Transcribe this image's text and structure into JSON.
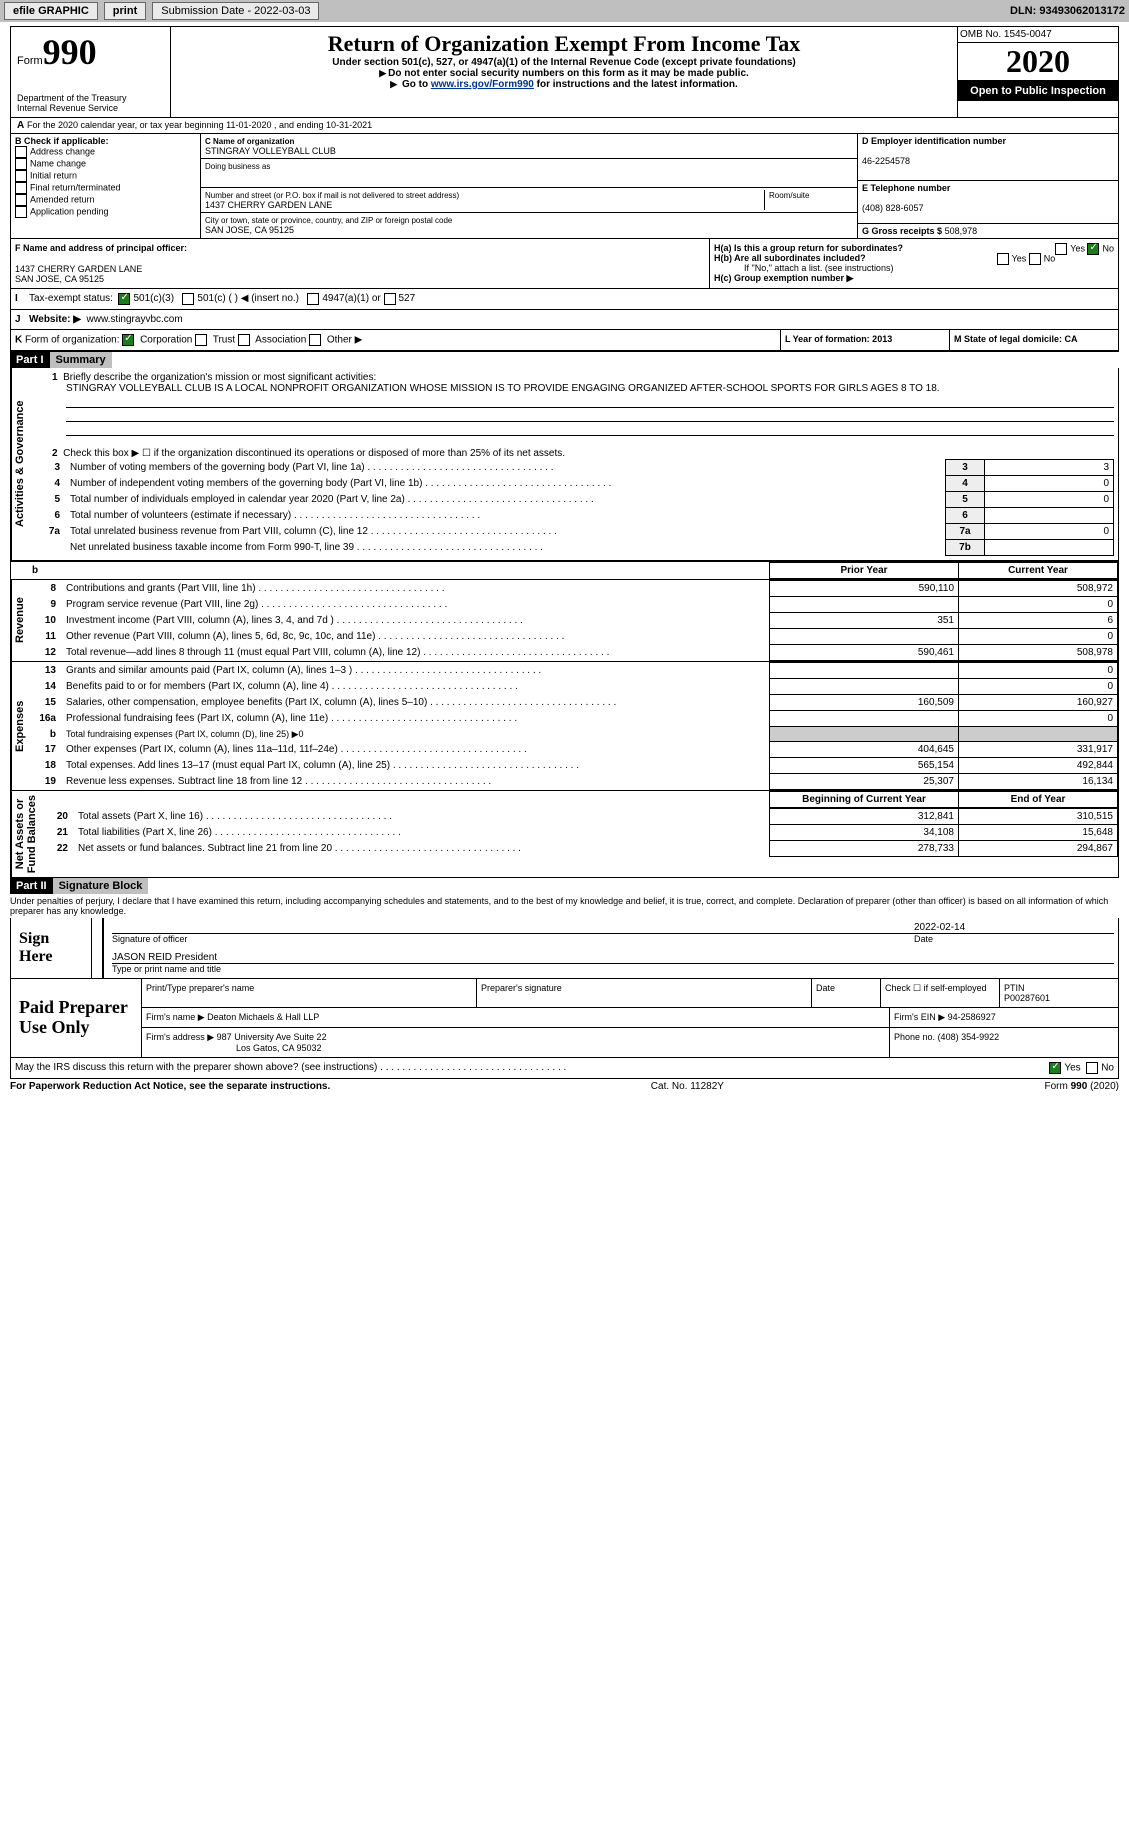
{
  "topbar": {
    "efile": "efile GRAPHIC",
    "print": "print",
    "submission": "Submission Date - 2022-03-03",
    "dln": "DLN: 93493062013172"
  },
  "header": {
    "form_label": "Form",
    "form_no": "990",
    "dept": "Department of the Treasury",
    "irs": "Internal Revenue Service",
    "title": "Return of Organization Exempt From Income Tax",
    "subtitle1": "Under section 501(c), 527, or 4947(a)(1) of the Internal Revenue Code (except private foundations)",
    "subtitle2": "Do not enter social security numbers on this form as it may be made public.",
    "subtitle3_pre": "Go to ",
    "subtitle3_link": "www.irs.gov/Form990",
    "subtitle3_post": " for instructions and the latest information.",
    "omb": "OMB No. 1545-0047",
    "year": "2020",
    "open": "Open to Public Inspection"
  },
  "rowA": {
    "pre": "A",
    "text": "For the 2020 calendar year, or tax year beginning 11-01-2020    , and ending 10-31-2021"
  },
  "boxB": {
    "title": "B Check if applicable:",
    "opts": [
      "Address change",
      "Name change",
      "Initial return",
      "Final return/terminated",
      "Amended return",
      "Application pending"
    ]
  },
  "boxC": {
    "label": "C Name of organization",
    "name": "STINGRAY VOLLEYBALL CLUB",
    "dba": "Doing business as",
    "addr_label": "Number and street (or P.O. box if mail is not delivered to street address)",
    "room": "Room/suite",
    "addr": "1437 CHERRY GARDEN LANE",
    "city_label": "City or town, state or province, country, and ZIP or foreign postal code",
    "city": "SAN JOSE, CA  95125"
  },
  "boxD": {
    "label": "D Employer identification number",
    "val": "46-2254578"
  },
  "boxE": {
    "label": "E Telephone number",
    "val": "(408) 828-6057"
  },
  "boxG": {
    "label": "G Gross receipts $",
    "val": "508,978"
  },
  "boxF": {
    "label": "F  Name and address of principal officer:",
    "addr1": "1437 CHERRY GARDEN LANE",
    "addr2": "SAN JOSE, CA  95125"
  },
  "boxH": {
    "ha": "H(a)  Is this a group return for subordinates?",
    "hb": "H(b)  Are all subordinates included?",
    "note": "If \"No,\" attach a list. (see instructions)",
    "hc": "H(c)  Group exemption number ▶",
    "yes": "Yes",
    "no": "No"
  },
  "rowI": {
    "label": "I",
    "text": "Tax-exempt status:",
    "o1": "501(c)(3)",
    "o2": "501(c) (  ) ◀ (insert no.)",
    "o3": "4947(a)(1) or",
    "o4": "527"
  },
  "rowJ": {
    "label": "J",
    "text": "Website: ▶",
    "val": "www.stingrayvbc.com"
  },
  "rowK": {
    "label": "K",
    "text": "Form of organization:",
    "o1": "Corporation",
    "o2": "Trust",
    "o3": "Association",
    "o4": "Other ▶"
  },
  "rowL": {
    "text": "L Year of formation: 2013"
  },
  "rowM": {
    "text": "M State of legal domicile: CA"
  },
  "part1": {
    "bar": "Part I",
    "title": "Summary"
  },
  "summary": {
    "l1": "Briefly describe the organization's mission or most significant activities:",
    "mission": "STINGRAY VOLLEYBALL CLUB IS A LOCAL NONPROFIT ORGANIZATION WHOSE MISSION IS TO PROVIDE ENGAGING ORGANIZED AFTER-SCHOOL SPORTS FOR GIRLS AGES 8 TO 18.",
    "l2": "Check this box ▶ ☐  if the organization discontinued its operations or disposed of more than 25% of its net assets.",
    "lines": [
      {
        "n": "3",
        "t": "Number of voting members of the governing body (Part VI, line 1a)",
        "lbl": "3",
        "v": "3"
      },
      {
        "n": "4",
        "t": "Number of independent voting members of the governing body (Part VI, line 1b)",
        "lbl": "4",
        "v": "0"
      },
      {
        "n": "5",
        "t": "Total number of individuals employed in calendar year 2020 (Part V, line 2a)",
        "lbl": "5",
        "v": "0"
      },
      {
        "n": "6",
        "t": "Total number of volunteers (estimate if necessary)",
        "lbl": "6",
        "v": ""
      },
      {
        "n": "7a",
        "t": "Total unrelated business revenue from Part VIII, column (C), line 12",
        "lbl": "7a",
        "v": "0"
      },
      {
        "n": "",
        "t": "Net unrelated business taxable income from Form 990-T, line 39",
        "lbl": "7b",
        "v": ""
      }
    ]
  },
  "twoCol": {
    "h_prior": "Prior Year",
    "h_curr": "Current Year",
    "h_beg": "Beginning of Current Year",
    "h_end": "End of Year",
    "revenue": [
      {
        "n": "8",
        "t": "Contributions and grants (Part VIII, line 1h)",
        "p": "590,110",
        "c": "508,972"
      },
      {
        "n": "9",
        "t": "Program service revenue (Part VIII, line 2g)",
        "p": "",
        "c": "0"
      },
      {
        "n": "10",
        "t": "Investment income (Part VIII, column (A), lines 3, 4, and 7d )",
        "p": "351",
        "c": "6"
      },
      {
        "n": "11",
        "t": "Other revenue (Part VIII, column (A), lines 5, 6d, 8c, 9c, 10c, and 11e)",
        "p": "",
        "c": "0"
      },
      {
        "n": "12",
        "t": "Total revenue—add lines 8 through 11 (must equal Part VIII, column (A), line 12)",
        "p": "590,461",
        "c": "508,978"
      }
    ],
    "expenses": [
      {
        "n": "13",
        "t": "Grants and similar amounts paid (Part IX, column (A), lines 1–3 )",
        "p": "",
        "c": "0"
      },
      {
        "n": "14",
        "t": "Benefits paid to or for members (Part IX, column (A), line 4)",
        "p": "",
        "c": "0"
      },
      {
        "n": "15",
        "t": "Salaries, other compensation, employee benefits (Part IX, column (A), lines 5–10)",
        "p": "160,509",
        "c": "160,927"
      },
      {
        "n": "16a",
        "t": "Professional fundraising fees (Part IX, column (A), line 11e)",
        "p": "",
        "c": "0"
      },
      {
        "n": "b",
        "t": "Total fundraising expenses (Part IX, column (D), line 25) ▶0",
        "p": "GREY",
        "c": "GREY",
        "sm": true
      },
      {
        "n": "17",
        "t": "Other expenses (Part IX, column (A), lines 11a–11d, 11f–24e)",
        "p": "404,645",
        "c": "331,917"
      },
      {
        "n": "18",
        "t": "Total expenses. Add lines 13–17 (must equal Part IX, column (A), line 25)",
        "p": "565,154",
        "c": "492,844"
      },
      {
        "n": "19",
        "t": "Revenue less expenses. Subtract line 18 from line 12",
        "p": "25,307",
        "c": "16,134"
      }
    ],
    "netassets": [
      {
        "n": "20",
        "t": "Total assets (Part X, line 16)",
        "p": "312,841",
        "c": "310,515"
      },
      {
        "n": "21",
        "t": "Total liabilities (Part X, line 26)",
        "p": "34,108",
        "c": "15,648"
      },
      {
        "n": "22",
        "t": "Net assets or fund balances. Subtract line 21 from line 20",
        "p": "278,733",
        "c": "294,867"
      }
    ]
  },
  "vertlabels": {
    "ag": "Activities & Governance",
    "rev": "Revenue",
    "exp": "Expenses",
    "na": "Net Assets or\nFund Balances"
  },
  "part2": {
    "bar": "Part II",
    "title": "Signature Block"
  },
  "declare": "Under penalties of perjury, I declare that I have examined this return, including accompanying schedules and statements, and to the best of my knowledge and belief, it is true, correct, and complete. Declaration of preparer (other than officer) is based on all information of which preparer has any knowledge.",
  "sign": {
    "here": "Sign Here",
    "sigline": "Signature of officer",
    "date": "2022-02-14",
    "datelabel": "Date",
    "name": "JASON REID  President",
    "namelabel": "Type or print name and title"
  },
  "paid": {
    "label": "Paid Preparer Use Only",
    "h1": "Print/Type preparer's name",
    "h2": "Preparer's signature",
    "h3": "Date",
    "check": "Check ☐ if self-employed",
    "ptin_l": "PTIN",
    "ptin": "P00287601",
    "firm_l": "Firm's name   ▶",
    "firm": "Deaton Michaels & Hall LLP",
    "ein_l": "Firm's EIN ▶",
    "ein": "94-2586927",
    "addr_l": "Firm's address ▶",
    "addr": "987 University Ave Suite 22",
    "addr2": "Los Gatos, CA  95032",
    "phone_l": "Phone no.",
    "phone": "(408) 354-9922"
  },
  "discuss": {
    "text": "May the IRS discuss this return with the preparer shown above? (see instructions)",
    "yes": "Yes",
    "no": "No"
  },
  "footer": {
    "l": "For Paperwork Reduction Act Notice, see the separate instructions.",
    "m": "Cat. No. 11282Y",
    "r": "Form 990 (2020)"
  }
}
